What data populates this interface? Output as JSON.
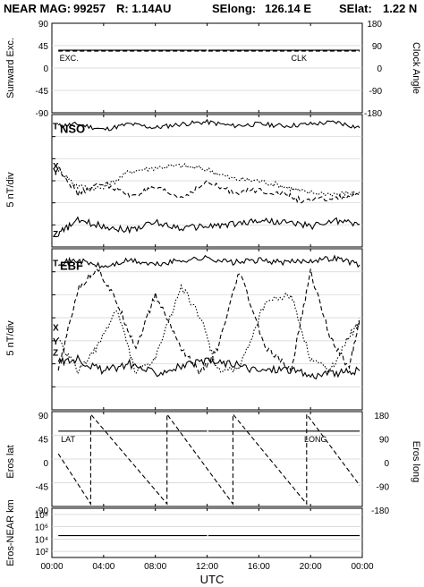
{
  "header": {
    "mission": "NEAR MAG:",
    "day": "99257",
    "range": "R: 1.14AU",
    "selong_label": "SElong:",
    "selong_value": "126.14 E",
    "selat_label": "SElat:",
    "selat_value": "1.22 N"
  },
  "chart_data": [
    {
      "type": "line",
      "title": "",
      "ylabel": "Sunward Exc.",
      "ylabel_right": "Clock Angle",
      "ylim": [
        -90,
        90
      ],
      "ylim_right": [
        -180,
        180
      ],
      "yticks": [
        "90",
        "45",
        "0",
        "-45",
        "-90"
      ],
      "yticks_right": [
        "180",
        "90",
        "0",
        "-90",
        "-180"
      ],
      "series": [
        {
          "name": "EXC.",
          "style": "solid",
          "color": "#000000",
          "x_hours": [
            0.5,
            12,
            12.1,
            23.8
          ],
          "y": [
            34,
            34,
            34,
            34
          ]
        },
        {
          "name": "CLK",
          "style": "dashed",
          "color": "#000000",
          "x_hours": [
            0.5,
            12,
            12.1,
            23.8
          ],
          "y": [
            34,
            34,
            34,
            34
          ]
        }
      ],
      "grid": true
    },
    {
      "type": "line",
      "title": "NSO",
      "ylabel": "5 nT/div",
      "series_labels": [
        "T",
        "X",
        "Y",
        "Z"
      ],
      "series": [
        {
          "name": "T",
          "style": "solid",
          "x_hours": [
            0.5,
            2,
            4,
            6,
            8,
            10,
            12,
            14,
            16,
            18,
            20,
            22,
            23.8
          ],
          "y": [
            5.2,
            5.3,
            5.0,
            5.3,
            5.1,
            5.3,
            5.4,
            5.2,
            5.3,
            5.2,
            5.3,
            5.4,
            5.1
          ]
        },
        {
          "name": "X",
          "style": "dotted",
          "x_hours": [
            0.5,
            2,
            4,
            6,
            8,
            10,
            12,
            14,
            16,
            18,
            19.5,
            22,
            23.8
          ],
          "y": [
            2.9,
            2.0,
            1.9,
            2.8,
            3.0,
            3.1,
            2.9,
            2.4,
            2.3,
            2.0,
            1.7,
            1.6,
            1.7
          ]
        },
        {
          "name": "Y",
          "style": "dashed",
          "x_hours": [
            0.5,
            2,
            4,
            6,
            8,
            10,
            12,
            14,
            16,
            18,
            19.5,
            22,
            23.8
          ],
          "y": [
            3.0,
            1.6,
            2.2,
            1.5,
            1.9,
            1.4,
            2.2,
            1.7,
            1.8,
            1.6,
            1.2,
            1.4,
            1.5
          ]
        },
        {
          "name": "Z",
          "style": "solid",
          "x_hours": [
            0.5,
            2,
            4,
            6,
            8,
            10,
            12,
            14,
            16,
            18,
            20,
            22,
            23.8
          ],
          "y": [
            -0.5,
            0.2,
            -0.1,
            -0.3,
            0.1,
            -0.2,
            -0.1,
            0.0,
            0.2,
            0.1,
            -0.1,
            0.2,
            0.0
          ]
        }
      ]
    },
    {
      "type": "line",
      "title": "EBF",
      "ylabel": "5 nT/div",
      "series_labels": [
        "T",
        "X",
        "Y",
        "Z"
      ],
      "series": [
        {
          "name": "T",
          "style": "solid",
          "x_hours": [
            0.5,
            2,
            4,
            6,
            8,
            10,
            12,
            14,
            16,
            18,
            20,
            22,
            23.8
          ],
          "y": [
            5.2,
            5.3,
            5.0,
            5.3,
            5.1,
            5.3,
            5.4,
            5.2,
            5.3,
            5.2,
            5.3,
            5.4,
            5.1
          ]
        },
        {
          "name": "X",
          "style": "dashed",
          "x_hours": [
            0.5,
            2,
            3.5,
            5,
            6.5,
            8,
            10,
            11.5,
            12.8,
            14.5,
            16.5,
            18.5,
            20,
            21.5,
            23,
            23.8
          ],
          "y": [
            0.5,
            4.0,
            5.0,
            3.5,
            1.5,
            3.8,
            1.5,
            0.4,
            1.4,
            4.8,
            1.5,
            0.5,
            4.8,
            2.0,
            0.6,
            2.8
          ]
        },
        {
          "name": "Y",
          "style": "dotted",
          "x_hours": [
            0.5,
            2,
            3.5,
            5,
            6.5,
            8,
            10,
            11.5,
            12.8,
            14.5,
            16.5,
            18.5,
            20,
            21.5,
            23,
            23.8
          ],
          "y": [
            1.8,
            0.5,
            1.5,
            3.2,
            0.4,
            1.0,
            4.2,
            2.8,
            0.5,
            0.6,
            3.5,
            3.8,
            1.0,
            0.5,
            2.0,
            2.6
          ]
        },
        {
          "name": "Z",
          "style": "solid",
          "x_hours": [
            0.5,
            2,
            4,
            6,
            8,
            10,
            12,
            14,
            16,
            18,
            20,
            22,
            23.8
          ],
          "y": [
            0.9,
            1.0,
            0.5,
            0.8,
            0.4,
            0.7,
            0.9,
            0.8,
            0.5,
            0.6,
            0.3,
            0.4,
            0.5
          ]
        }
      ]
    },
    {
      "type": "line",
      "ylabel": "Eros lat",
      "ylabel_right": "Eros long",
      "ylim": [
        -90,
        90
      ],
      "ylim_right": [
        -180,
        180
      ],
      "yticks": [
        "90",
        "45",
        "0",
        "-45",
        "-90"
      ],
      "yticks_right": [
        "180",
        "90",
        "0",
        "-90",
        "-180"
      ],
      "series": [
        {
          "name": "LAT",
          "style": "solid",
          "x_hours": [
            0.5,
            12,
            12.1,
            23.8
          ],
          "y": [
            53,
            53,
            53,
            53
          ]
        },
        {
          "name": "LONG",
          "style": "dashed",
          "x_hours": [
            0.5,
            3.0,
            3.0,
            8.9,
            8.9,
            14.0,
            14.0,
            19.7,
            19.7,
            23.8
          ],
          "y": [
            10,
            -85,
            85,
            -85,
            85,
            -85,
            85,
            -85,
            85,
            -50
          ]
        }
      ],
      "grid": true
    },
    {
      "type": "line",
      "ylabel": "Eros-NEAR km",
      "yscale": "log",
      "ylim": [
        10,
        1000000000
      ],
      "yticks": [
        "10⁸",
        "10⁶",
        "10⁴",
        "10²"
      ],
      "series": [
        {
          "name": "range",
          "style": "solid",
          "x_hours": [
            0.5,
            12,
            12.1,
            23.8
          ],
          "y": [
            35000,
            35000,
            35000,
            35000
          ]
        }
      ],
      "grid": true
    }
  ],
  "x_axis": {
    "label": "UTC",
    "ticks": [
      "00:00",
      "04:00",
      "08:00",
      "12:00",
      "16:00",
      "20:00",
      "00:00"
    ],
    "xlim_hours": [
      0,
      24
    ]
  }
}
